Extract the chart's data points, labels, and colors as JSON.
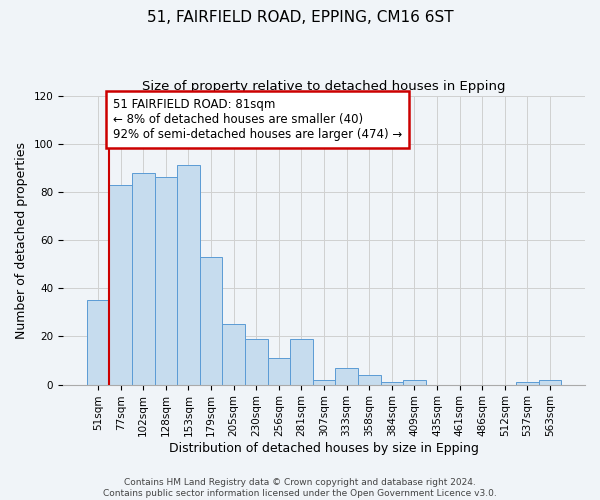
{
  "title": "51, FAIRFIELD ROAD, EPPING, CM16 6ST",
  "subtitle": "Size of property relative to detached houses in Epping",
  "xlabel": "Distribution of detached houses by size in Epping",
  "ylabel": "Number of detached properties",
  "bar_labels": [
    "51sqm",
    "77sqm",
    "102sqm",
    "128sqm",
    "153sqm",
    "179sqm",
    "205sqm",
    "230sqm",
    "256sqm",
    "281sqm",
    "307sqm",
    "333sqm",
    "358sqm",
    "384sqm",
    "409sqm",
    "435sqm",
    "461sqm",
    "486sqm",
    "512sqm",
    "537sqm",
    "563sqm"
  ],
  "bar_heights": [
    35,
    83,
    88,
    86,
    91,
    53,
    25,
    19,
    11,
    19,
    2,
    7,
    4,
    1,
    2,
    0,
    0,
    0,
    0,
    1,
    2
  ],
  "bar_color": "#c6dcee",
  "bar_edge_color": "#5b9bd5",
  "vline_x_index": 1,
  "annotation_lines": [
    "51 FAIRFIELD ROAD: 81sqm",
    "← 8% of detached houses are smaller (40)",
    "92% of semi-detached houses are larger (474) →"
  ],
  "annotation_box_facecolor": "#ffffff",
  "annotation_box_edgecolor": "#cc0000",
  "vline_color": "#cc0000",
  "ylim": [
    0,
    120
  ],
  "yticks": [
    0,
    20,
    40,
    60,
    80,
    100,
    120
  ],
  "footer_line1": "Contains HM Land Registry data © Crown copyright and database right 2024.",
  "footer_line2": "Contains public sector information licensed under the Open Government Licence v3.0.",
  "title_fontsize": 11,
  "subtitle_fontsize": 9.5,
  "xlabel_fontsize": 9,
  "ylabel_fontsize": 9,
  "tick_fontsize": 7.5,
  "footer_fontsize": 6.5,
  "annotation_fontsize": 8.5,
  "grid_color": "#d0d0d0",
  "background_color": "#f0f4f8"
}
